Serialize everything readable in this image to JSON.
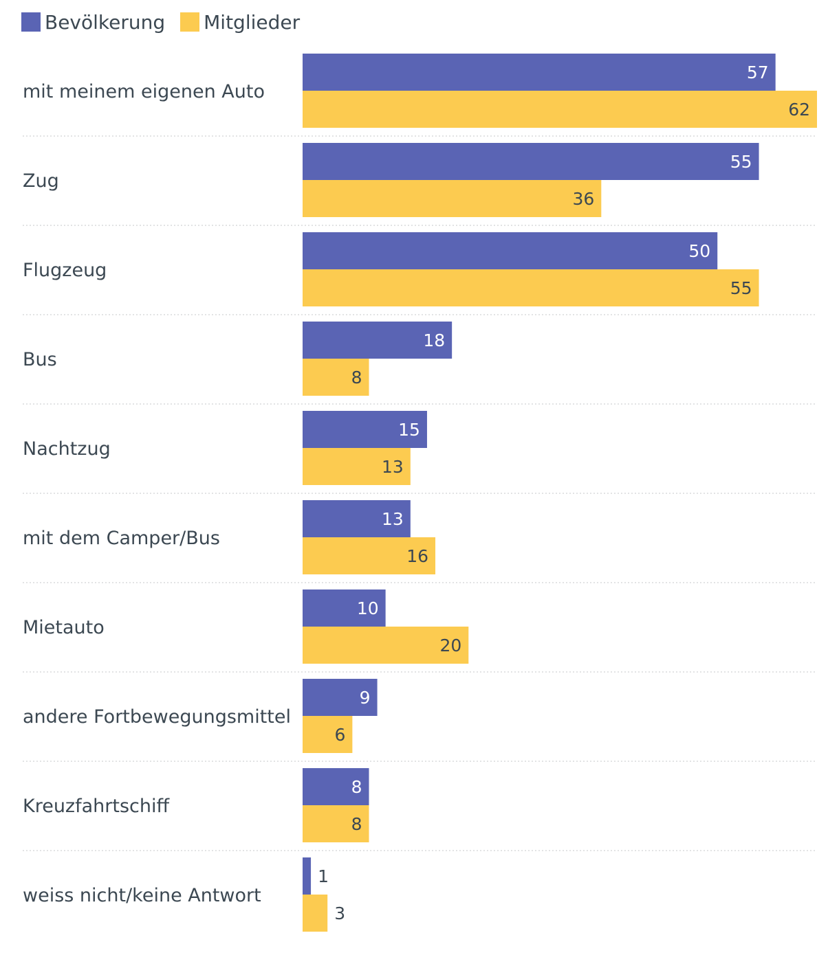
{
  "chart_data": {
    "type": "bar",
    "orientation": "horizontal",
    "title": "",
    "xlabel": "",
    "ylabel": "",
    "xlim": [
      0,
      62
    ],
    "grid": false,
    "legend_position": "top-left",
    "categories": [
      "mit meinem eigenen Auto",
      "Zug",
      "Flugzeug",
      "Bus",
      "Nachtzug",
      "mit dem Camper/Bus",
      "Mietauto",
      "andere Fortbewegungsmittel",
      "Kreuzfahrtschiff",
      "weiss nicht/keine Antwort"
    ],
    "series": [
      {
        "name": "Bevölkerung",
        "color": "#5a64b4",
        "label_color": "#ffffff",
        "values": [
          57,
          55,
          50,
          18,
          15,
          13,
          10,
          9,
          8,
          1
        ]
      },
      {
        "name": "Mitglieder",
        "color": "#fccb50",
        "label_color": "#3c4852",
        "values": [
          62,
          36,
          55,
          8,
          13,
          16,
          20,
          6,
          8,
          3
        ]
      }
    ]
  }
}
